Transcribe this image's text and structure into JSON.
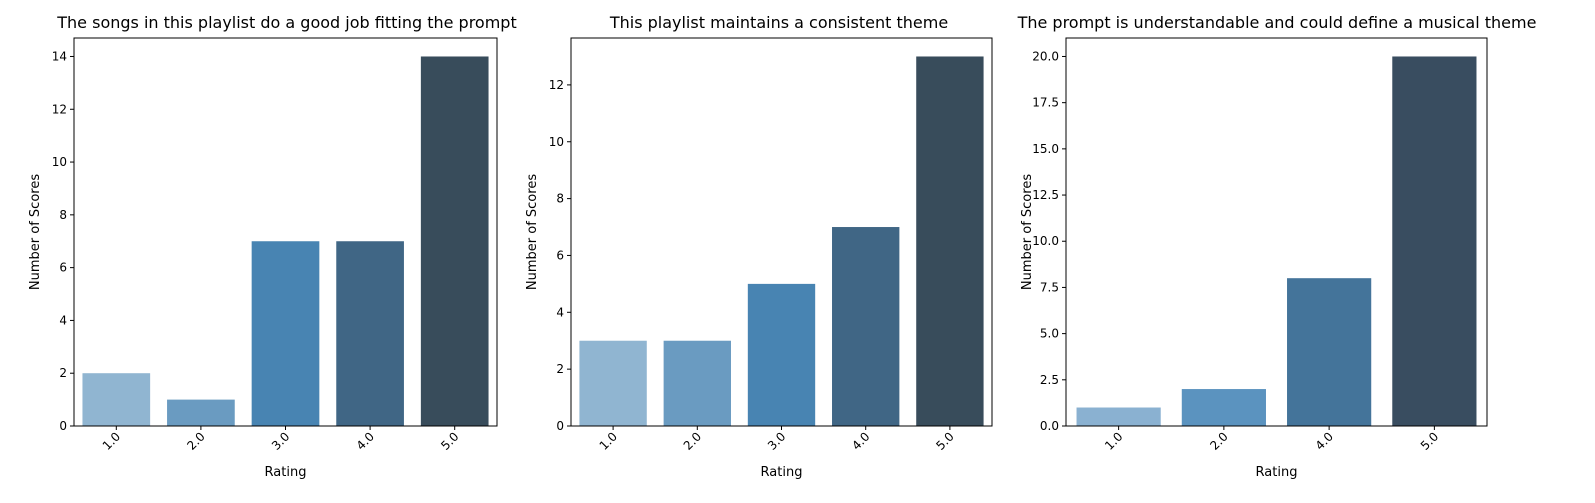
{
  "chart_data": [
    {
      "type": "bar",
      "title": "The songs in this playlist do a good job fitting the prompt",
      "xlabel": "Rating",
      "ylabel": "Number of Scores",
      "categories": [
        "1.0",
        "2.0",
        "3.0",
        "4.0",
        "5.0"
      ],
      "values": [
        2,
        1,
        7,
        7,
        14
      ],
      "ylim": [
        0,
        14.7
      ],
      "yticks": [
        "0",
        "2",
        "4",
        "6",
        "8",
        "10",
        "12",
        "14"
      ],
      "ytick_values": [
        0,
        2,
        4,
        6,
        8,
        10,
        12,
        14
      ],
      "colors": [
        "#90b5d1",
        "#6a9bc1",
        "#4884b2",
        "#406685",
        "#384c5b"
      ],
      "grid": false
    },
    {
      "type": "bar",
      "title": "This playlist maintains a consistent theme",
      "xlabel": "Rating",
      "ylabel": "Number of Scores",
      "categories": [
        "1.0",
        "2.0",
        "3.0",
        "4.0",
        "5.0"
      ],
      "values": [
        3,
        3,
        5,
        7,
        13
      ],
      "ylim": [
        0,
        13.65
      ],
      "yticks": [
        "0",
        "2",
        "4",
        "6",
        "8",
        "10",
        "12"
      ],
      "ytick_values": [
        0,
        2,
        4,
        6,
        8,
        10,
        12
      ],
      "colors": [
        "#90b5d1",
        "#6a9bc1",
        "#4884b2",
        "#406685",
        "#384c5b"
      ],
      "grid": false
    },
    {
      "type": "bar",
      "title": "The prompt is understandable and could define a musical theme",
      "xlabel": "Rating",
      "ylabel": "Number of Scores",
      "categories": [
        "1.0",
        "2.0",
        "4.0",
        "5.0"
      ],
      "values": [
        1,
        2,
        8,
        20
      ],
      "ylim": [
        0,
        21
      ],
      "yticks": [
        "0.0",
        "2.5",
        "5.0",
        "7.5",
        "10.0",
        "12.5",
        "15.0",
        "17.5",
        "20.0"
      ],
      "ytick_values": [
        0,
        2.5,
        5,
        7.5,
        10,
        12.5,
        15,
        17.5,
        20
      ],
      "colors": [
        "#8ab1d1",
        "#5b93bf",
        "#44749a",
        "#394d60"
      ],
      "grid": false
    }
  ]
}
